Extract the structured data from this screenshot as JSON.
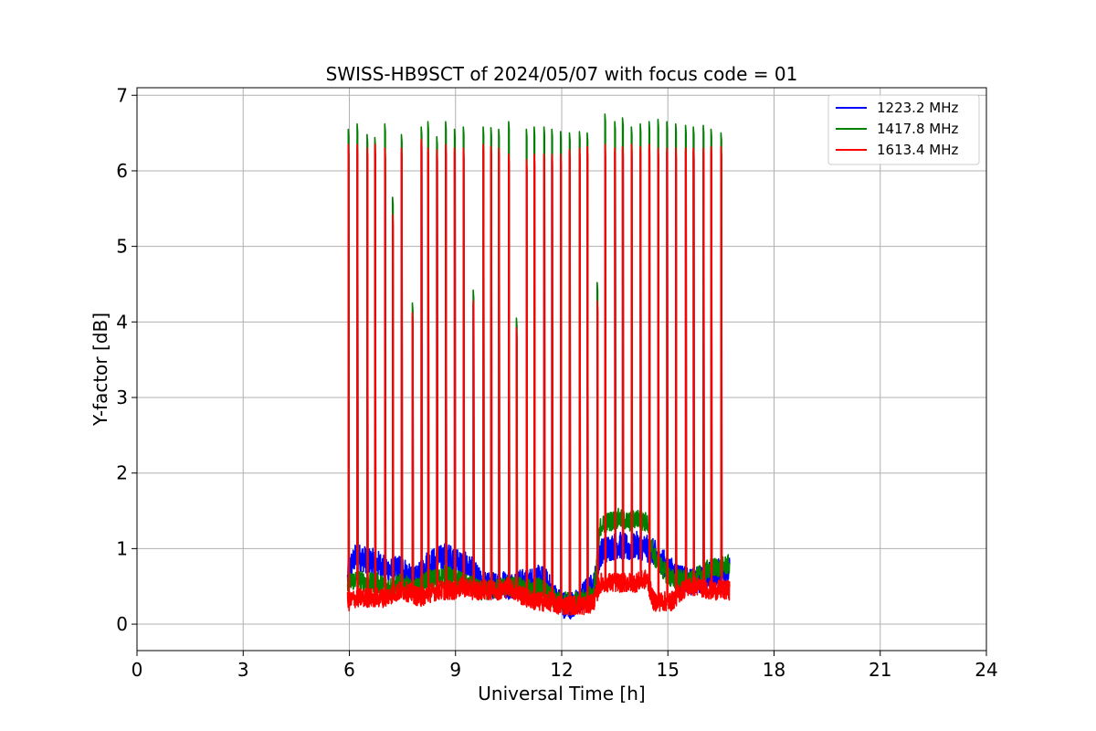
{
  "chart_data": {
    "type": "line",
    "title": "SWISS-HB9SCT of 2024/05/07 with focus code = 01",
    "xlabel": "Universal Time [h]",
    "ylabel": "Y-factor [dB]",
    "xlim": [
      0,
      24
    ],
    "ylim": [
      -0.35,
      7.1
    ],
    "xticks": [
      0,
      3,
      6,
      9,
      12,
      15,
      18,
      21,
      24
    ],
    "yticks": [
      0,
      1,
      2,
      3,
      4,
      5,
      6,
      7
    ],
    "grid": true,
    "legend_position": "top-right",
    "series": [
      {
        "name": "1223.2 MHz",
        "color": "#0000ff",
        "x": [
          5.95,
          6.0,
          6.2,
          6.5,
          6.8,
          7.0,
          7.2,
          7.5,
          7.8,
          8.0,
          8.2,
          8.5,
          8.7,
          9.0,
          9.2,
          9.5,
          9.7,
          10.0,
          10.3,
          10.5,
          10.8,
          11.0,
          11.3,
          11.5,
          11.7,
          11.9,
          12.1,
          12.3,
          12.5,
          12.7,
          12.9,
          13.1,
          13.3,
          13.6,
          13.9,
          14.1,
          14.4,
          14.6,
          14.9,
          15.1,
          15.4,
          15.6,
          15.9,
          16.2,
          16.5,
          16.75
        ],
        "y": [
          0.6,
          0.75,
          0.9,
          0.85,
          0.8,
          0.75,
          0.7,
          0.75,
          0.55,
          0.65,
          0.8,
          0.85,
          0.9,
          0.85,
          0.8,
          0.7,
          0.55,
          0.5,
          0.55,
          0.5,
          0.55,
          0.55,
          0.6,
          0.6,
          0.45,
          0.3,
          0.25,
          0.25,
          0.3,
          0.45,
          0.5,
          0.95,
          1.0,
          1.05,
          1.0,
          1.05,
          1.0,
          0.95,
          0.8,
          0.7,
          0.6,
          0.55,
          0.6,
          0.65,
          0.7,
          0.7
        ]
      },
      {
        "name": "1417.8 MHz",
        "color": "#008000",
        "x": [
          5.95,
          6.0,
          6.2,
          6.5,
          6.8,
          7.0,
          7.2,
          7.5,
          7.8,
          8.0,
          8.2,
          8.5,
          8.7,
          9.0,
          9.2,
          9.5,
          9.7,
          10.0,
          10.3,
          10.5,
          10.8,
          11.0,
          11.3,
          11.5,
          11.7,
          11.9,
          12.1,
          12.3,
          12.5,
          12.7,
          12.9,
          13.1,
          13.3,
          13.6,
          13.9,
          14.1,
          14.4,
          14.6,
          14.9,
          15.1,
          15.4,
          15.6,
          15.9,
          16.2,
          16.5,
          16.75
        ],
        "y": [
          0.5,
          0.55,
          0.6,
          0.55,
          0.55,
          0.5,
          0.5,
          0.55,
          0.45,
          0.5,
          0.6,
          0.6,
          0.65,
          0.6,
          0.55,
          0.5,
          0.45,
          0.45,
          0.5,
          0.5,
          0.5,
          0.45,
          0.5,
          0.45,
          0.35,
          0.3,
          0.3,
          0.3,
          0.3,
          0.35,
          0.4,
          1.3,
          1.35,
          1.4,
          1.35,
          1.4,
          1.35,
          0.9,
          0.7,
          0.6,
          0.6,
          0.55,
          0.65,
          0.75,
          0.75,
          0.8
        ]
      },
      {
        "name": "1613.4 MHz",
        "color": "#ff0000",
        "x": [
          5.95,
          6.0,
          6.2,
          6.5,
          6.8,
          7.0,
          7.2,
          7.5,
          7.8,
          8.0,
          8.2,
          8.5,
          8.7,
          9.0,
          9.2,
          9.5,
          9.7,
          10.0,
          10.3,
          10.5,
          10.8,
          11.0,
          11.3,
          11.5,
          11.7,
          11.9,
          12.1,
          12.3,
          12.5,
          12.7,
          12.9,
          13.1,
          13.3,
          13.6,
          13.9,
          14.1,
          14.4,
          14.6,
          14.9,
          15.1,
          15.4,
          15.6,
          15.9,
          16.2,
          16.5,
          16.75
        ],
        "y": [
          0.3,
          0.3,
          0.35,
          0.35,
          0.35,
          0.35,
          0.4,
          0.45,
          0.4,
          0.35,
          0.4,
          0.45,
          0.45,
          0.45,
          0.5,
          0.45,
          0.45,
          0.45,
          0.45,
          0.5,
          0.4,
          0.35,
          0.3,
          0.3,
          0.3,
          0.25,
          0.25,
          0.25,
          0.25,
          0.25,
          0.3,
          0.55,
          0.55,
          0.55,
          0.55,
          0.55,
          0.6,
          0.3,
          0.3,
          0.3,
          0.45,
          0.5,
          0.5,
          0.45,
          0.45,
          0.45
        ]
      }
    ],
    "spikes": {
      "x": [
        5.97,
        6.22,
        6.5,
        6.72,
        7.0,
        7.22,
        7.47,
        7.78,
        8.03,
        8.22,
        8.47,
        8.72,
        8.97,
        9.22,
        9.5,
        9.78,
        10.0,
        10.22,
        10.5,
        10.72,
        11.0,
        11.22,
        11.5,
        11.72,
        11.97,
        12.22,
        12.5,
        12.72,
        13.0,
        13.22,
        13.5,
        13.72,
        13.97,
        14.22,
        14.47,
        14.72,
        14.97,
        15.22,
        15.5,
        15.72,
        16.0,
        16.22,
        16.5
      ],
      "green_peak": [
        6.55,
        6.62,
        6.48,
        6.44,
        6.62,
        5.65,
        6.48,
        4.25,
        6.58,
        6.65,
        6.45,
        6.65,
        6.55,
        6.58,
        4.42,
        6.58,
        6.57,
        6.55,
        6.65,
        4.05,
        6.55,
        6.58,
        6.58,
        6.55,
        6.52,
        6.5,
        6.52,
        6.5,
        4.52,
        6.75,
        6.65,
        6.7,
        6.58,
        6.62,
        6.65,
        6.68,
        6.65,
        6.62,
        6.6,
        6.58,
        6.6,
        6.55,
        6.5
      ],
      "red_peak": [
        6.35,
        6.35,
        6.3,
        6.35,
        6.3,
        5.42,
        6.3,
        4.12,
        6.42,
        6.3,
        6.28,
        6.35,
        6.3,
        6.3,
        4.28,
        6.35,
        6.32,
        6.3,
        6.22,
        3.92,
        6.15,
        6.22,
        6.22,
        6.22,
        6.22,
        6.28,
        6.3,
        6.32,
        4.28,
        6.35,
        6.3,
        6.32,
        6.35,
        6.32,
        6.35,
        6.3,
        6.3,
        6.3,
        6.3,
        6.3,
        6.3,
        6.32,
        6.32
      ]
    }
  }
}
